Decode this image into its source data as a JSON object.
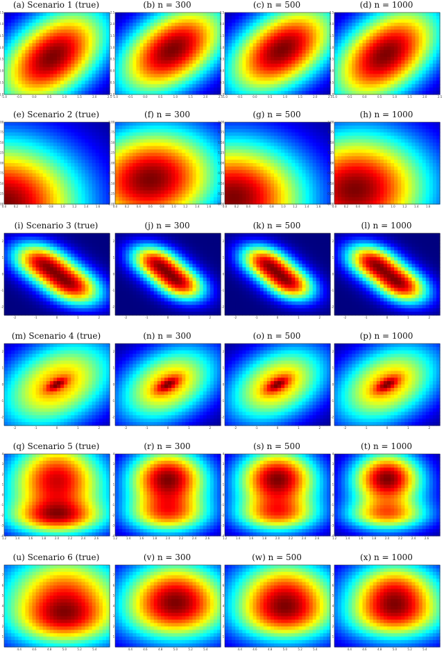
{
  "colormap": [
    "#00007f",
    "#0000ff",
    "#0080ff",
    "#00ffff",
    "#80ff80",
    "#ffff00",
    "#ff8000",
    "#ff0000",
    "#7f0000"
  ],
  "chart_data": [
    {
      "type": "heatmap",
      "title": "(a) Scenario 1 (true)",
      "xlim": [
        -1.0,
        2.5
      ],
      "ylim": [
        -1.0,
        2.5
      ],
      "xticks": [
        "-1.0",
        "-0.5",
        "0.0",
        "0.5",
        "1.0",
        "1.5",
        "2.0",
        "2.5"
      ],
      "yticks": [
        "-1.0",
        "-0.5",
        "0.0",
        "0.5",
        "1.0",
        "1.5",
        "2.0",
        "2.5"
      ],
      "peaks": [
        {
          "x": 0.6,
          "y": 0.6,
          "sx": 1.3,
          "sy": 1.5,
          "rho": 0.45,
          "w": 1
        }
      ]
    },
    {
      "type": "heatmap",
      "title": "(b) n = 300",
      "xlim": [
        -1.0,
        2.5
      ],
      "ylim": [
        -1.0,
        2.5
      ],
      "xticks": [
        "-1.0",
        "-0.5",
        "0.0",
        "0.5",
        "1.0",
        "1.5",
        "2.0",
        "2.5"
      ],
      "yticks": [
        "-1.0",
        "-0.5",
        "0.0",
        "0.5",
        "1.0",
        "1.5",
        "2.0",
        "2.5"
      ],
      "peaks": [
        {
          "x": 0.9,
          "y": 0.9,
          "sx": 1.3,
          "sy": 1.4,
          "rho": 0.45,
          "w": 1
        }
      ]
    },
    {
      "type": "heatmap",
      "title": "(c) n = 500",
      "xlim": [
        -1.0,
        2.5
      ],
      "ylim": [
        -1.0,
        2.5
      ],
      "xticks": [
        "-1.0",
        "-0.5",
        "0.0",
        "0.5",
        "1.0",
        "1.5",
        "2.0",
        "2.5"
      ],
      "yticks": [
        "-1.0",
        "-0.5",
        "0.0",
        "0.5",
        "1.0",
        "1.5",
        "2.0",
        "2.5"
      ],
      "peaks": [
        {
          "x": 0.9,
          "y": 0.9,
          "sx": 1.3,
          "sy": 1.4,
          "rho": 0.45,
          "w": 1
        }
      ]
    },
    {
      "type": "heatmap",
      "title": "(d) n = 1000",
      "xlim": [
        -1.0,
        2.5
      ],
      "ylim": [
        -1.0,
        2.5
      ],
      "xticks": [
        "-1.0",
        "-0.5",
        "0.0",
        "0.5",
        "1.0",
        "1.5",
        "2.0",
        "2.5"
      ],
      "yticks": [
        "-1.0",
        "-0.5",
        "0.0",
        "0.5",
        "1.0",
        "1.5",
        "2.0",
        "2.5"
      ],
      "peaks": [
        {
          "x": 0.7,
          "y": 0.7,
          "sx": 1.3,
          "sy": 1.5,
          "rho": 0.45,
          "w": 1
        }
      ]
    },
    {
      "type": "heatmap",
      "title": "(e) Scenario 2 (true)",
      "xlim": [
        0.0,
        1.8
      ],
      "ylim": [
        0.0,
        2.0
      ],
      "xticks": [
        "0.0",
        "0.2",
        "0.4",
        "0.6",
        "0.8",
        "1.0",
        "1.2",
        "1.4",
        "1.6"
      ],
      "yticks": [
        "0.00",
        "0.25",
        "0.50",
        "0.75",
        "1.00",
        "1.25",
        "1.50",
        "1.75",
        "2.00"
      ],
      "peaks": [
        {
          "x": 0.0,
          "y": 0.0,
          "sx": 0.95,
          "sy": 1.1,
          "rho": 0.0,
          "w": 1
        }
      ]
    },
    {
      "type": "heatmap",
      "title": "(f) n = 300",
      "xlim": [
        0.0,
        1.8
      ],
      "ylim": [
        0.0,
        2.0
      ],
      "xticks": [
        "0.0",
        "0.2",
        "0.4",
        "0.6",
        "0.8",
        "1.0",
        "1.2",
        "1.4",
        "1.6"
      ],
      "yticks": [
        "0.00",
        "0.25",
        "0.50",
        "0.75",
        "1.00",
        "1.25",
        "1.50",
        "1.75",
        "2.00"
      ],
      "peaks": [
        {
          "x": 0.6,
          "y": 0.6,
          "sx": 0.85,
          "sy": 0.9,
          "rho": 0.1,
          "w": 1
        }
      ]
    },
    {
      "type": "heatmap",
      "title": "(g) n = 500",
      "xlim": [
        0.0,
        1.8
      ],
      "ylim": [
        0.0,
        2.0
      ],
      "xticks": [
        "0.0",
        "0.2",
        "0.4",
        "0.6",
        "0.8",
        "1.0",
        "1.2",
        "1.4",
        "1.6"
      ],
      "yticks": [
        "0.00",
        "0.25",
        "0.50",
        "0.75",
        "1.00",
        "1.25",
        "1.50",
        "1.75",
        "2.00"
      ],
      "peaks": [
        {
          "x": 0.15,
          "y": 0.15,
          "sx": 0.9,
          "sy": 1.0,
          "rho": 0.0,
          "w": 1
        }
      ]
    },
    {
      "type": "heatmap",
      "title": "(h) n = 1000",
      "xlim": [
        0.0,
        1.8
      ],
      "ylim": [
        0.0,
        2.0
      ],
      "xticks": [
        "0.0",
        "0.2",
        "0.4",
        "0.6",
        "0.8",
        "1.0",
        "1.2",
        "1.4",
        "1.6"
      ],
      "yticks": [
        "0.00",
        "0.25",
        "0.50",
        "0.75",
        "1.00",
        "1.25",
        "1.50",
        "1.75",
        "2.00"
      ],
      "peaks": [
        {
          "x": 0.35,
          "y": 0.35,
          "sx": 0.9,
          "sy": 1.0,
          "rho": 0.05,
          "w": 1
        }
      ]
    },
    {
      "type": "heatmap",
      "title": "(i) Scenario 3 (true)",
      "xlim": [
        -2.5,
        2.5
      ],
      "ylim": [
        -2.5,
        2.5
      ],
      "xticks": [
        "-2",
        "-1",
        "0",
        "1",
        "2"
      ],
      "yticks": [
        "-2",
        "-1",
        "0",
        "1",
        "2"
      ],
      "peaks": [
        {
          "x": -0.75,
          "y": 0.75,
          "sx": 1.0,
          "sy": 0.85,
          "rho": -0.3,
          "w": 1
        },
        {
          "x": 0.75,
          "y": -0.75,
          "sx": 1.0,
          "sy": 0.85,
          "rho": -0.3,
          "w": 1
        }
      ]
    },
    {
      "type": "heatmap",
      "title": "(j) n = 300",
      "xlim": [
        -2.5,
        2.5
      ],
      "ylim": [
        -2.5,
        2.5
      ],
      "xticks": [
        "-2",
        "-1",
        "0",
        "1",
        "2"
      ],
      "yticks": [
        "-2",
        "-1",
        "0",
        "1",
        "2"
      ],
      "peaks": [
        {
          "x": -0.6,
          "y": 0.75,
          "sx": 0.85,
          "sy": 0.75,
          "rho": -0.3,
          "w": 1
        },
        {
          "x": 0.6,
          "y": -0.6,
          "sx": 0.85,
          "sy": 0.75,
          "rho": -0.3,
          "w": 1
        }
      ]
    },
    {
      "type": "heatmap",
      "title": "(k) n = 500",
      "xlim": [
        -2.5,
        2.5
      ],
      "ylim": [
        -2.5,
        2.5
      ],
      "xticks": [
        "-2",
        "-1",
        "0",
        "1",
        "2"
      ],
      "yticks": [
        "-2",
        "-1",
        "0",
        "1",
        "2"
      ],
      "peaks": [
        {
          "x": -0.6,
          "y": 0.75,
          "sx": 0.85,
          "sy": 0.75,
          "rho": -0.3,
          "w": 1
        },
        {
          "x": 0.6,
          "y": -0.6,
          "sx": 0.85,
          "sy": 0.75,
          "rho": -0.3,
          "w": 1
        }
      ]
    },
    {
      "type": "heatmap",
      "title": "(l) n = 1000",
      "xlim": [
        -2.5,
        2.5
      ],
      "ylim": [
        -2.5,
        2.5
      ],
      "xticks": [
        "-2",
        "-1",
        "0",
        "1",
        "2"
      ],
      "yticks": [
        "-2",
        "-1",
        "0",
        "1",
        "2"
      ],
      "peaks": [
        {
          "x": -0.7,
          "y": 0.75,
          "sx": 0.9,
          "sy": 0.8,
          "rho": -0.3,
          "w": 1
        },
        {
          "x": 0.7,
          "y": -0.7,
          "sx": 0.9,
          "sy": 0.8,
          "rho": -0.3,
          "w": 1
        }
      ]
    },
    {
      "type": "heatmap",
      "title": "(m) Scenario 4 (true)",
      "xlim": [
        -2.5,
        2.5
      ],
      "ylim": [
        -2.5,
        2.5
      ],
      "xticks": [
        "-2",
        "-1",
        "0",
        "1",
        "2"
      ],
      "yticks": [
        "-2",
        "-1",
        "0",
        "1",
        "2"
      ],
      "peaks": [
        {
          "x": 0.0,
          "y": 0.0,
          "sx": 2.0,
          "sy": 2.0,
          "rho": 0.35,
          "w": 0.75
        },
        {
          "x": 0.0,
          "y": 0.0,
          "sx": 0.35,
          "sy": 0.3,
          "rho": 0.6,
          "w": 0.3
        }
      ]
    },
    {
      "type": "heatmap",
      "title": "(n) n = 300",
      "xlim": [
        -2.5,
        2.5
      ],
      "ylim": [
        -2.5,
        2.5
      ],
      "xticks": [
        "-2",
        "-1",
        "0",
        "1",
        "2"
      ],
      "yticks": [
        "-2",
        "-1",
        "0",
        "1",
        "2"
      ],
      "peaks": [
        {
          "x": 0.0,
          "y": 0.0,
          "sx": 1.7,
          "sy": 1.7,
          "rho": 0.35,
          "w": 0.75
        },
        {
          "x": 0.0,
          "y": 0.0,
          "sx": 0.4,
          "sy": 0.35,
          "rho": 0.6,
          "w": 0.3
        }
      ]
    },
    {
      "type": "heatmap",
      "title": "(o) n = 500",
      "xlim": [
        -2.5,
        2.5
      ],
      "ylim": [
        -2.5,
        2.5
      ],
      "xticks": [
        "-2",
        "-1",
        "0",
        "1",
        "2"
      ],
      "yticks": [
        "-2",
        "-1",
        "0",
        "1",
        "2"
      ],
      "peaks": [
        {
          "x": 0.0,
          "y": 0.0,
          "sx": 1.7,
          "sy": 1.7,
          "rho": 0.35,
          "w": 0.75
        },
        {
          "x": 0.0,
          "y": 0.0,
          "sx": 0.4,
          "sy": 0.35,
          "rho": 0.6,
          "w": 0.3
        }
      ]
    },
    {
      "type": "heatmap",
      "title": "(p) n = 1000",
      "xlim": [
        -2.5,
        2.5
      ],
      "ylim": [
        -2.5,
        2.5
      ],
      "xticks": [
        "-2",
        "-1",
        "0",
        "1",
        "2"
      ],
      "yticks": [
        "-2",
        "-1",
        "0",
        "1",
        "2"
      ],
      "peaks": [
        {
          "x": 0.0,
          "y": 0.0,
          "sx": 1.8,
          "sy": 1.8,
          "rho": 0.35,
          "w": 0.75
        },
        {
          "x": 0.0,
          "y": 0.0,
          "sx": 0.4,
          "sy": 0.35,
          "rho": 0.6,
          "w": 0.3
        }
      ]
    },
    {
      "type": "heatmap",
      "title": "(q) Scenario 5 (true)",
      "xlim": [
        1.2,
        2.8
      ],
      "ylim": [
        -4,
        4
      ],
      "xticks": [
        "1.2",
        "1.4",
        "1.6",
        "1.8",
        "2.0",
        "2.2",
        "2.4",
        "2.6"
      ],
      "yticks": [
        "-4",
        "-3",
        "-2",
        "-1",
        "0",
        "1",
        "2",
        "3",
        "4"
      ],
      "peaks": [
        {
          "x": 2.0,
          "y": 1.8,
          "sx": 0.45,
          "sy": 2.6,
          "rho": 0.0,
          "w": 0.85
        },
        {
          "x": 2.0,
          "y": -2.2,
          "sx": 0.5,
          "sy": 1.1,
          "rho": 0.0,
          "w": 0.7
        },
        {
          "x": 2.0,
          "y": 0.0,
          "sx": 0.8,
          "sy": 3.5,
          "rho": 0.0,
          "w": 0.5
        }
      ]
    },
    {
      "type": "heatmap",
      "title": "(r) n = 300",
      "xlim": [
        1.2,
        2.8
      ],
      "ylim": [
        -4,
        4
      ],
      "xticks": [
        "1.2",
        "1.4",
        "1.6",
        "1.8",
        "2.0",
        "2.2",
        "2.4",
        "2.6"
      ],
      "yticks": [
        "-4",
        "-3",
        "-2",
        "-1",
        "0",
        "1",
        "2",
        "3",
        "4"
      ],
      "peaks": [
        {
          "x": 2.0,
          "y": 1.8,
          "sx": 0.4,
          "sy": 1.9,
          "rho": 0.0,
          "w": 0.85
        },
        {
          "x": 2.0,
          "y": -2.0,
          "sx": 0.45,
          "sy": 1.2,
          "rho": 0.0,
          "w": 0.55
        },
        {
          "x": 2.0,
          "y": 0.0,
          "sx": 0.55,
          "sy": 3.0,
          "rho": 0.0,
          "w": 0.45
        }
      ]
    },
    {
      "type": "heatmap",
      "title": "(s) n = 500",
      "xlim": [
        1.2,
        2.8
      ],
      "ylim": [
        -4,
        4
      ],
      "xticks": [
        "1.2",
        "1.4",
        "1.6",
        "1.8",
        "2.0",
        "2.2",
        "2.4",
        "2.6"
      ],
      "yticks": [
        "-4",
        "-3",
        "-2",
        "-1",
        "0",
        "1",
        "2",
        "3",
        "4"
      ],
      "peaks": [
        {
          "x": 2.0,
          "y": 1.8,
          "sx": 0.4,
          "sy": 1.9,
          "rho": 0.0,
          "w": 0.85
        },
        {
          "x": 2.0,
          "y": -2.0,
          "sx": 0.45,
          "sy": 1.1,
          "rho": 0.0,
          "w": 0.55
        },
        {
          "x": 2.0,
          "y": 0.0,
          "sx": 0.55,
          "sy": 3.0,
          "rho": 0.0,
          "w": 0.45
        }
      ]
    },
    {
      "type": "heatmap",
      "title": "(t) n = 1000",
      "xlim": [
        1.2,
        2.8
      ],
      "ylim": [
        -4,
        4
      ],
      "xticks": [
        "1.2",
        "1.4",
        "1.6",
        "1.8",
        "2.0",
        "2.2",
        "2.4",
        "2.6"
      ],
      "yticks": [
        "-4",
        "-3",
        "-2",
        "-1",
        "0",
        "1",
        "2",
        "3",
        "4"
      ],
      "peaks": [
        {
          "x": 2.0,
          "y": 1.8,
          "sx": 0.35,
          "sy": 1.7,
          "rho": 0.0,
          "w": 0.85
        },
        {
          "x": 2.0,
          "y": -2.0,
          "sx": 0.45,
          "sy": 1.0,
          "rho": 0.0,
          "w": 0.55
        },
        {
          "x": 2.0,
          "y": 0.0,
          "sx": 0.5,
          "sy": 2.8,
          "rho": 0.0,
          "w": 0.4
        }
      ]
    },
    {
      "type": "heatmap",
      "title": "(u) Scenario 6 (true)",
      "xlim": [
        4.2,
        5.6
      ],
      "ylim": [
        0,
        8
      ],
      "xticks": [
        "4.4",
        "4.6",
        "4.8",
        "5.0",
        "5.2",
        "5.4"
      ],
      "yticks": [
        "1",
        "2",
        "3",
        "4",
        "5",
        "6",
        "7"
      ],
      "peaks": [
        {
          "x": 5.0,
          "y": 5.5,
          "sx": 0.5,
          "sy": 2.6,
          "rho": 0.0,
          "w": 0.8
        },
        {
          "x": 5.0,
          "y": 2.5,
          "sx": 0.45,
          "sy": 1.6,
          "rho": 0.0,
          "w": 0.65
        },
        {
          "x": 5.0,
          "y": 4.0,
          "sx": 0.9,
          "sy": 4.0,
          "rho": 0.0,
          "w": 0.55
        }
      ]
    },
    {
      "type": "heatmap",
      "title": "(v) n = 300",
      "xlim": [
        4.2,
        5.6
      ],
      "ylim": [
        0,
        8
      ],
      "xticks": [
        "4.4",
        "4.6",
        "4.8",
        "5.0",
        "5.2",
        "5.4"
      ],
      "yticks": [
        "1",
        "2",
        "3",
        "4",
        "5",
        "6",
        "7"
      ],
      "peaks": [
        {
          "x": 5.0,
          "y": 5.5,
          "sx": 0.45,
          "sy": 2.2,
          "rho": 0.0,
          "w": 0.85
        },
        {
          "x": 5.0,
          "y": 3.0,
          "sx": 0.5,
          "sy": 1.8,
          "rho": 0.0,
          "w": 0.55
        },
        {
          "x": 5.0,
          "y": 4.0,
          "sx": 0.7,
          "sy": 3.6,
          "rho": 0.0,
          "w": 0.45
        }
      ]
    },
    {
      "type": "heatmap",
      "title": "(w) n = 500",
      "xlim": [
        4.2,
        5.6
      ],
      "ylim": [
        0,
        8
      ],
      "xticks": [
        "4.4",
        "4.6",
        "4.8",
        "5.0",
        "5.2",
        "5.4"
      ],
      "yticks": [
        "1",
        "2",
        "3",
        "4",
        "5",
        "6",
        "7"
      ],
      "peaks": [
        {
          "x": 5.0,
          "y": 5.5,
          "sx": 0.45,
          "sy": 2.2,
          "rho": 0.0,
          "w": 0.85
        },
        {
          "x": 5.0,
          "y": 2.8,
          "sx": 0.45,
          "sy": 1.6,
          "rho": 0.0,
          "w": 0.6
        },
        {
          "x": 5.0,
          "y": 4.0,
          "sx": 0.7,
          "sy": 3.6,
          "rho": 0.0,
          "w": 0.45
        }
      ]
    },
    {
      "type": "heatmap",
      "title": "(x) n = 1000",
      "xlim": [
        4.2,
        5.6
      ],
      "ylim": [
        0,
        8
      ],
      "xticks": [
        "4.4",
        "4.6",
        "4.8",
        "5.0",
        "5.2",
        "5.4"
      ],
      "yticks": [
        "1",
        "2",
        "3",
        "4",
        "5",
        "6",
        "7"
      ],
      "peaks": [
        {
          "x": 5.0,
          "y": 5.5,
          "sx": 0.4,
          "sy": 2.0,
          "rho": 0.0,
          "w": 0.85
        },
        {
          "x": 5.0,
          "y": 2.8,
          "sx": 0.45,
          "sy": 1.5,
          "rho": 0.0,
          "w": 0.55
        },
        {
          "x": 5.0,
          "y": 4.0,
          "sx": 0.65,
          "sy": 3.4,
          "rho": 0.0,
          "w": 0.45
        }
      ]
    }
  ]
}
